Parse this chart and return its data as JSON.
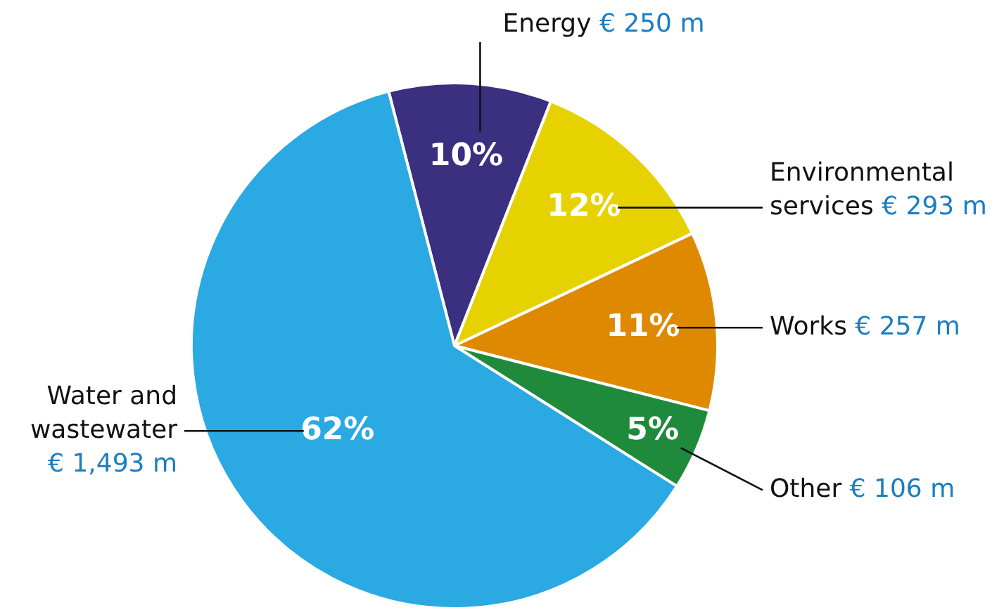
{
  "chart_data": {
    "type": "pie",
    "categories": [
      "Energy",
      "Environmental services",
      "Works",
      "Other",
      "Water and wastewater"
    ],
    "values": [
      10,
      12,
      11,
      5,
      62
    ],
    "colors": [
      "#3b2f7f",
      "#e6d200",
      "#de8900",
      "#1f8a3c",
      "#2aa9e2"
    ],
    "value_labels": [
      "10%",
      "12%",
      "11%",
      "5%",
      "62%"
    ],
    "annotations": [
      {
        "text": "€ 250 m",
        "x": "Energy"
      },
      {
        "text": "€ 293 m",
        "x": "Environmental services"
      },
      {
        "text": "€ 257 m",
        "x": "Works"
      },
      {
        "text": "€ 106 m",
        "x": "Other"
      },
      {
        "text": "€ 1,493 m",
        "x": "Water and wastewater"
      }
    ],
    "legend": false
  }
}
